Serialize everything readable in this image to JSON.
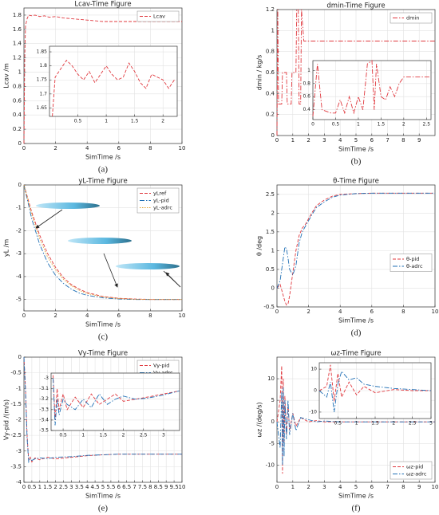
{
  "chart_data": [
    {
      "type": "line",
      "title": "Lcav-Time Figure",
      "xlabel": "SimTime /s",
      "ylabel": "Lcav /m",
      "panel_label": "(a)",
      "x": [
        0,
        0.05,
        0.1,
        0.2,
        0.3,
        0.5,
        0.7,
        1,
        1.3,
        1.6,
        2,
        2.5,
        3,
        3.5,
        4,
        4.5,
        5,
        6,
        7,
        8,
        9,
        10
      ],
      "series": [
        {
          "name": "Lcav",
          "color": "#e0383e",
          "dash": "dashed",
          "values": [
            0,
            1.2,
            1.65,
            1.75,
            1.8,
            1.79,
            1.8,
            1.78,
            1.79,
            1.77,
            1.78,
            1.76,
            1.75,
            1.74,
            1.73,
            1.72,
            1.71,
            1.71,
            1.71,
            1.71,
            1.71,
            1.71
          ]
        }
      ],
      "xlim": [
        0,
        10
      ],
      "xticks": [
        0,
        2,
        4,
        6,
        8,
        10
      ],
      "ylim": [
        0,
        1.9
      ],
      "yticks": [
        0,
        0.2,
        0.4,
        0.6,
        0.8,
        1,
        1.2,
        1.4,
        1.6,
        1.8
      ],
      "grid": true,
      "legend": "upper right",
      "inset": {
        "x": [
          0.05,
          0.1,
          0.2,
          0.3,
          0.4,
          0.5,
          0.6,
          0.7,
          0.8,
          0.9,
          1,
          1.1,
          1.2,
          1.3,
          1.4,
          1.5,
          1.6,
          1.7,
          1.8,
          1.9,
          2,
          2.1,
          2.2
        ],
        "series": [
          {
            "color": "#e0383e",
            "dash": "dashed",
            "values": [
              1.62,
              1.76,
              1.79,
              1.82,
              1.8,
              1.77,
              1.75,
              1.78,
              1.74,
              1.77,
              1.8,
              1.77,
              1.75,
              1.76,
              1.81,
              1.78,
              1.74,
              1.72,
              1.77,
              1.76,
              1.75,
              1.72,
              1.75
            ]
          }
        ],
        "xlim": [
          0,
          2.25
        ],
        "xticks": [
          0.5,
          1,
          1.5,
          2
        ],
        "ylim": [
          1.62,
          1.87
        ],
        "yticks": [
          1.65,
          1.7,
          1.75,
          1.8,
          1.85
        ]
      }
    },
    {
      "type": "line",
      "title": "dmin-Time Figure",
      "xlabel": "SimTime /s",
      "ylabel": "dmin / kg/s",
      "panel_label": "(b)",
      "x": [
        0,
        0.05,
        0.1,
        0.3,
        0.35,
        0.6,
        0.65,
        0.9,
        0.95,
        1.2,
        1.25,
        1.35,
        1.4,
        1.5,
        1.55,
        1.7,
        2,
        3,
        4,
        5,
        6,
        7,
        8,
        9,
        10
      ],
      "series": [
        {
          "name": "dmin",
          "color": "#e0383e",
          "dash": "dashdot",
          "values": [
            0,
            1.2,
            0.3,
            0.3,
            0.6,
            0.6,
            0.3,
            0.3,
            0.6,
            0.6,
            1.2,
            1.2,
            0.3,
            0.3,
            1.2,
            0.9,
            0.9,
            0.9,
            0.9,
            0.9,
            0.9,
            0.9,
            0.9,
            0.9,
            0.9
          ]
        }
      ],
      "xlim": [
        0,
        10
      ],
      "xticks": [
        0,
        1,
        2,
        3,
        4,
        5,
        6,
        7,
        8,
        9
      ],
      "ylim": [
        0,
        1.2
      ],
      "yticks": [
        0,
        0.2,
        0.4,
        0.6,
        0.8,
        1,
        1.2
      ],
      "grid": true,
      "legend": "upper right",
      "inset": {
        "x": [
          0,
          0.1,
          0.2,
          0.4,
          0.5,
          0.6,
          0.7,
          0.8,
          0.9,
          1,
          1.1,
          1.2,
          1.3,
          1.35,
          1.4,
          1.5,
          1.6,
          1.7,
          1.8,
          1.9,
          2,
          2.2,
          2.4,
          2.6
        ],
        "series": [
          {
            "color": "#e0383e",
            "dash": "dashdot",
            "values": [
              0.3,
              1.1,
              0.4,
              0.35,
              0.35,
              0.55,
              0.35,
              0.6,
              0.35,
              0.6,
              0.4,
              1.1,
              1.15,
              0.4,
              1.1,
              0.6,
              0.55,
              0.75,
              0.6,
              0.8,
              0.9,
              0.9,
              0.9,
              0.9
            ]
          }
        ],
        "xlim": [
          0,
          2.6
        ],
        "xticks": [
          0,
          0.5,
          1,
          1.5,
          2,
          2.5
        ],
        "ylim": [
          0.25,
          1.15
        ],
        "yticks": [
          0.4,
          0.6,
          0.8,
          1
        ]
      }
    },
    {
      "type": "line",
      "title": "yL-Time Figure",
      "xlabel": "SimTime /s",
      "ylabel": "yL /m",
      "panel_label": "(c)",
      "x": [
        0,
        0.5,
        1,
        1.5,
        2,
        2.5,
        3,
        3.5,
        4,
        5,
        6,
        7,
        8,
        10
      ],
      "series": [
        {
          "name": "yLref",
          "color": "#e0383e",
          "dash": "dashed",
          "values": [
            0,
            -1.2,
            -2.2,
            -3.0,
            -3.6,
            -4.05,
            -4.35,
            -4.55,
            -4.7,
            -4.87,
            -4.95,
            -4.98,
            -5,
            -5
          ]
        },
        {
          "name": "yL-pid",
          "color": "#1f6fb5",
          "dash": "dashdot",
          "values": [
            0,
            -1.5,
            -2.6,
            -3.4,
            -3.95,
            -4.3,
            -4.55,
            -4.72,
            -4.82,
            -4.93,
            -4.98,
            -5,
            -5,
            -5
          ]
        },
        {
          "name": "yL-adrc",
          "color": "#e0a030",
          "dash": "dotted",
          "values": [
            0,
            -1.3,
            -2.35,
            -3.15,
            -3.7,
            -4.12,
            -4.4,
            -4.6,
            -4.74,
            -4.89,
            -4.96,
            -4.99,
            -5,
            -5
          ]
        }
      ],
      "xlim": [
        0,
        10
      ],
      "xticks": [
        0,
        2,
        4,
        6,
        8,
        10
      ],
      "ylim": [
        -5.5,
        0
      ],
      "yticks": [
        -5,
        -4,
        -3,
        -2,
        -1,
        0
      ],
      "grid": true,
      "legend": "upper right"
    },
    {
      "type": "line",
      "title": "θ-Time Figure",
      "xlabel": "SimTime /s",
      "ylabel": "θ /deg",
      "panel_label": "(d)",
      "x": [
        0,
        0.2,
        0.4,
        0.5,
        0.6,
        0.7,
        0.8,
        1,
        1.2,
        1.4,
        1.6,
        1.8,
        2,
        2.2,
        2.5,
        3,
        3.5,
        4,
        5,
        6,
        8,
        10
      ],
      "series": [
        {
          "name": "θ-pid",
          "color": "#e0383e",
          "dash": "dashed",
          "values": [
            0,
            0.1,
            -0.2,
            -0.35,
            -0.45,
            -0.42,
            -0.2,
            0.4,
            1,
            1.4,
            1.6,
            1.7,
            1.85,
            2.0,
            2.2,
            2.35,
            2.45,
            2.5,
            2.52,
            2.53,
            2.53,
            2.53
          ]
        },
        {
          "name": "θ-adrc",
          "color": "#1f6fb5",
          "dash": "dashdot",
          "values": [
            0,
            0.2,
            0.8,
            1.1,
            1.05,
            0.8,
            0.5,
            0.35,
            0.6,
            1.2,
            1.5,
            1.65,
            1.8,
            1.95,
            2.15,
            2.3,
            2.42,
            2.48,
            2.52,
            2.53,
            2.53,
            2.53
          ]
        }
      ],
      "xlim": [
        0,
        10
      ],
      "xticks": [
        0,
        2,
        4,
        6,
        8,
        10
      ],
      "ylim": [
        -0.5,
        2.75
      ],
      "yticks": [
        -0.5,
        0,
        0.5,
        1,
        1.5,
        2,
        2.5
      ],
      "grid": true,
      "legend": "center right"
    },
    {
      "type": "line",
      "title": "Vy-Time Figure",
      "xlabel": "SimTime /s",
      "ylabel": "Vy-pid /(m/s)",
      "panel_label": "(e)",
      "x": [
        0,
        0.1,
        0.2,
        0.3,
        0.4,
        0.5,
        0.7,
        1,
        1.5,
        2,
        3,
        4,
        5,
        6,
        7,
        8,
        10
      ],
      "series": [
        {
          "name": "Vy-pid",
          "color": "#e0383e",
          "dash": "dashed",
          "values": [
            0,
            -1,
            -2.5,
            -3.3,
            -3.2,
            -3.35,
            -3.22,
            -3.28,
            -3.2,
            -3.25,
            -3.2,
            -3.15,
            -3.12,
            -3.1,
            -3.1,
            -3.1,
            -3.1
          ]
        },
        {
          "name": "Vy-adrc",
          "color": "#1f6fb5",
          "dash": "dashdot",
          "values": [
            0,
            -1.1,
            -2.6,
            -3.35,
            -3.25,
            -3.3,
            -3.25,
            -3.22,
            -3.24,
            -3.2,
            -3.18,
            -3.14,
            -3.12,
            -3.1,
            -3.1,
            -3.1,
            -3.1
          ]
        }
      ],
      "xlim": [
        0,
        10
      ],
      "xticks": [
        0,
        0.5,
        1,
        1.5,
        2,
        2.5,
        3,
        3.5,
        4,
        4.5,
        5,
        5.5,
        6,
        6.5,
        7,
        7.5,
        8,
        8.5,
        9,
        9.5,
        10
      ],
      "ylim": [
        -4,
        0
      ],
      "yticks": [
        -4,
        -3.5,
        -3,
        -2.5,
        -2,
        -1.5,
        -1,
        -0.5,
        0
      ],
      "grid": true,
      "legend": "upper right",
      "inset": {
        "x": [
          0.25,
          0.3,
          0.35,
          0.4,
          0.5,
          0.6,
          0.8,
          1,
          1.2,
          1.4,
          1.6,
          1.8,
          2,
          2.3,
          2.6,
          3,
          3.4
        ],
        "series": [
          {
            "color": "#e0383e",
            "dash": "dashed",
            "values": [
              -2.97,
              -3.4,
              -3.1,
              -3.3,
              -3.15,
              -3.3,
              -3.18,
              -3.28,
              -3.15,
              -3.25,
              -3.2,
              -3.15,
              -3.22,
              -3.2,
              -3.18,
              -3.15,
              -3.12
            ]
          },
          {
            "color": "#1f6fb5",
            "dash": "dashdot",
            "values": [
              -3.0,
              -3.45,
              -3.2,
              -3.35,
              -3.2,
              -3.25,
              -3.3,
              -3.2,
              -3.28,
              -3.15,
              -3.25,
              -3.2,
              -3.17,
              -3.2,
              -3.19,
              -3.16,
              -3.12
            ]
          }
        ],
        "xlim": [
          0.2,
          3.4
        ],
        "xticks": [
          0.5,
          1,
          1.5,
          2,
          2.5,
          3
        ],
        "ylim": [
          -3.5,
          -2.95
        ],
        "yticks": [
          -3,
          -3.1,
          -3.2,
          -3.3,
          -3.4,
          -3.5
        ]
      }
    },
    {
      "type": "line",
      "title": "ωz-Time Figure",
      "xlabel": "SimTime /s",
      "ylabel": "ωz /(deg/s)",
      "panel_label": "(f)",
      "x": [
        0,
        0.2,
        0.3,
        0.35,
        0.4,
        0.45,
        0.5,
        0.6,
        0.7,
        0.8,
        1,
        1.2,
        1.5,
        2,
        2.5,
        3,
        4,
        5,
        10
      ],
      "series": [
        {
          "name": "ωz-pid",
          "color": "#e0383e",
          "dash": "dashed",
          "values": [
            0,
            5,
            13,
            -12,
            10,
            -5,
            6,
            -3,
            4,
            -2,
            2,
            -1,
            1,
            0,
            0.3,
            0,
            0,
            0,
            0
          ]
        },
        {
          "name": "ωz-adrc",
          "color": "#1f6fb5",
          "dash": "dashdot",
          "values": [
            0,
            -6,
            7,
            -10,
            8,
            -8,
            5,
            -4,
            5,
            -3,
            2,
            -2,
            1,
            0.5,
            0,
            0.2,
            0,
            0,
            0
          ]
        }
      ],
      "xlim": [
        0,
        10
      ],
      "xticks": [
        0,
        1,
        2,
        3,
        4,
        5,
        6,
        7,
        8,
        9,
        10
      ],
      "ylim": [
        -14,
        15
      ],
      "yticks": [
        -10,
        -5,
        0,
        5,
        10
      ],
      "grid": true,
      "legend": "lower right",
      "inset": {
        "x": [
          0,
          0.2,
          0.3,
          0.4,
          0.5,
          0.6,
          0.8,
          1,
          1.2,
          1.5,
          2,
          2.5,
          3
        ],
        "series": [
          {
            "color": "#e0383e",
            "dash": "dashed",
            "values": [
              0,
              2,
              12,
              -5,
              8,
              -3,
              4,
              -2,
              2,
              -1,
              0.5,
              0,
              0
            ]
          },
          {
            "color": "#1f6fb5",
            "dash": "dashdot",
            "values": [
              0,
              -3,
              4,
              -10,
              3,
              9,
              5,
              6,
              3,
              2,
              1,
              0.5,
              0
            ]
          }
        ],
        "xlim": [
          0,
          3
        ],
        "xticks": [
          0.5,
          1,
          1.5,
          2,
          2.5,
          3
        ],
        "ylim": [
          -13,
          13
        ],
        "yticks": [
          -10,
          0,
          10
        ]
      }
    }
  ]
}
